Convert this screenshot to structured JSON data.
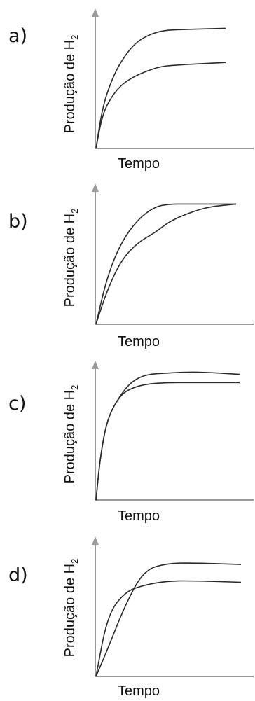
{
  "chart_data": [
    {
      "type": "line",
      "option_label": "a)",
      "ylabel": "Produção de H",
      "ylabel_sub": "2",
      "xlabel": "Tempo",
      "axis_color": "#9a9a9a",
      "line_color": "#2b2b2b",
      "series": [
        {
          "x": [
            0,
            0.05,
            0.12,
            0.2,
            0.3,
            0.4,
            0.5,
            0.6,
            1.0
          ],
          "values": [
            0,
            0.3,
            0.5,
            0.65,
            0.77,
            0.83,
            0.86,
            0.87,
            0.88
          ]
        },
        {
          "x": [
            0,
            0.05,
            0.12,
            0.2,
            0.3,
            0.4,
            0.5,
            0.6,
            1.0
          ],
          "values": [
            0,
            0.25,
            0.38,
            0.47,
            0.53,
            0.57,
            0.6,
            0.61,
            0.63
          ]
        }
      ]
    },
    {
      "type": "line",
      "option_label": "b)",
      "ylabel": "Produção de H",
      "ylabel_sub": "2",
      "xlabel": "Tempo",
      "axis_color": "#9a9a9a",
      "line_color": "#2b2b2b",
      "series": [
        {
          "x": [
            0,
            0.08,
            0.18,
            0.3,
            0.42,
            0.52,
            0.65,
            0.8,
            1.0
          ],
          "values": [
            0,
            0.35,
            0.6,
            0.77,
            0.86,
            0.88,
            0.88,
            0.88,
            0.88
          ]
        },
        {
          "x": [
            0,
            0.08,
            0.18,
            0.3,
            0.42,
            0.52,
            0.65,
            0.8,
            1.0
          ],
          "values": [
            0,
            0.25,
            0.47,
            0.6,
            0.67,
            0.75,
            0.81,
            0.86,
            0.88
          ]
        }
      ]
    },
    {
      "type": "line",
      "option_label": "c)",
      "ylabel": "Produção de H",
      "ylabel_sub": "2",
      "xlabel": "Tempo",
      "axis_color": "#9a9a9a",
      "line_color": "#2b2b2b",
      "series": [
        {
          "x": [
            0,
            0.03,
            0.08,
            0.17,
            0.25,
            0.35,
            0.5,
            0.7,
            1.0
          ],
          "values": [
            0,
            0.32,
            0.6,
            0.77,
            0.82,
            0.85,
            0.86,
            0.86,
            0.86
          ]
        },
        {
          "x": [
            0,
            0.03,
            0.08,
            0.17,
            0.25,
            0.35,
            0.5,
            0.7,
            1.0
          ],
          "values": [
            0,
            0.32,
            0.6,
            0.77,
            0.87,
            0.92,
            0.93,
            0.94,
            0.92
          ]
        }
      ]
    },
    {
      "type": "line",
      "option_label": "d)",
      "ylabel": "Produção de H",
      "ylabel_sub": "2",
      "xlabel": "Tempo",
      "axis_color": "#9a9a9a",
      "line_color": "#2b2b2b",
      "series": [
        {
          "x": [
            0,
            0.08,
            0.2,
            0.33,
            0.5,
            0.7,
            1.0
          ],
          "values": [
            0,
            0.45,
            0.62,
            0.67,
            0.7,
            0.7,
            0.69
          ]
        },
        {
          "x": [
            0,
            0.08,
            0.2,
            0.33,
            0.5,
            0.7,
            1.0
          ],
          "values": [
            0,
            0.2,
            0.52,
            0.78,
            0.83,
            0.83,
            0.82
          ]
        }
      ]
    }
  ]
}
